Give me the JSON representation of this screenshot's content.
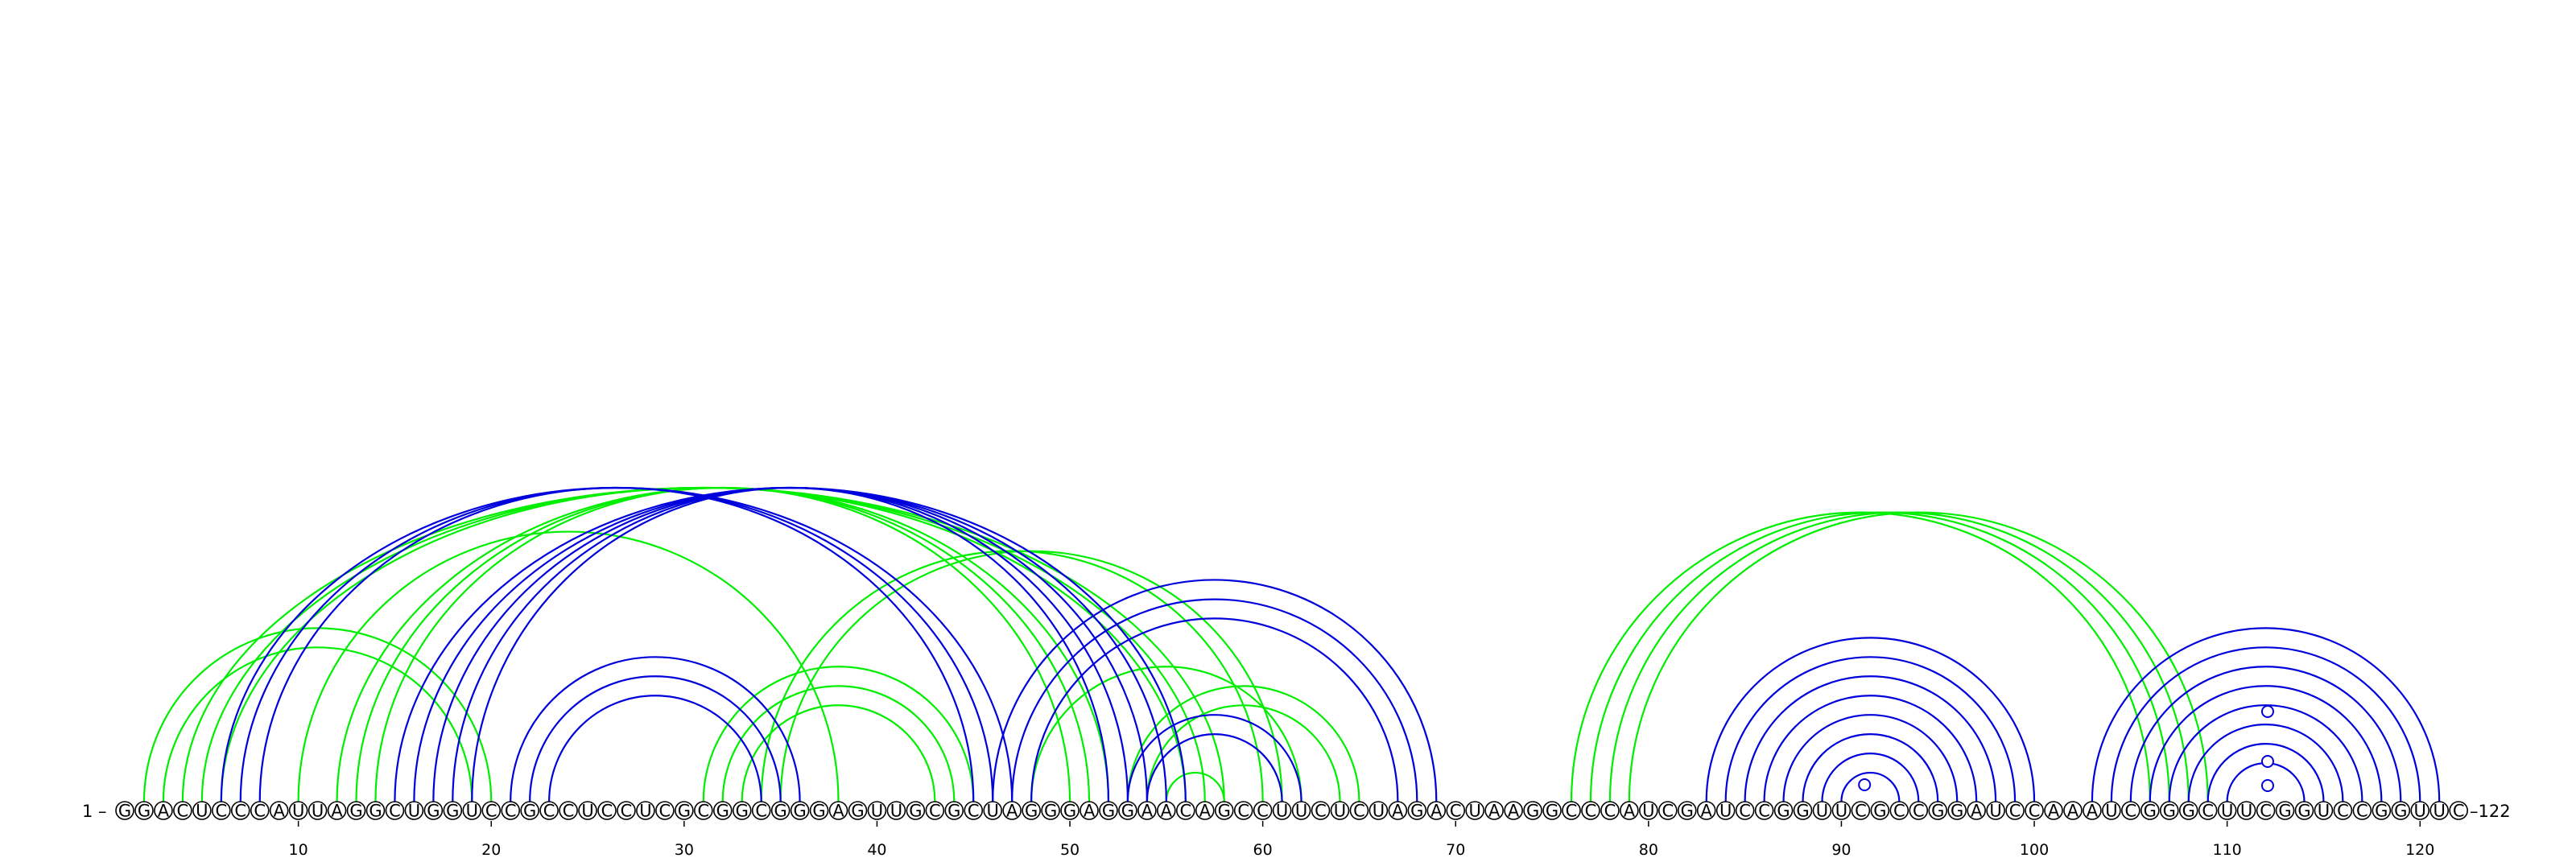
{
  "sequence": "GGACUCCCAUUAGGCUGGUCCGCCUCCUCGCGGCGGGAGUUGCGCUAGGGAGGAACAGCCUUCUCUAGACUAAGGCCCAUCGAUCCGGUUCGCCGGAUCCAAAUCGGGCUUCGGUCCGGUUC",
  "start_label": "1 –",
  "end_label": "–122",
  "ticks": [
    10,
    20,
    30,
    40,
    50,
    60,
    70,
    80,
    90,
    100,
    110,
    120
  ],
  "colors": {
    "blue": "#0000dd",
    "green": "#00ee00",
    "axis": "#000000"
  },
  "arcs_green": [
    [
      2,
      20
    ],
    [
      3,
      19
    ],
    [
      4,
      58
    ],
    [
      5,
      57
    ],
    [
      6,
      56
    ],
    [
      12,
      52
    ],
    [
      13,
      51
    ],
    [
      14,
      50
    ],
    [
      10,
      38
    ],
    [
      31,
      45
    ],
    [
      32,
      44
    ],
    [
      33,
      43
    ],
    [
      34,
      60
    ],
    [
      35,
      61
    ],
    [
      48,
      62
    ],
    [
      53,
      65
    ],
    [
      54,
      64
    ],
    [
      55,
      58
    ],
    [
      76,
      106
    ],
    [
      77,
      107
    ],
    [
      78,
      108
    ],
    [
      79,
      109
    ]
  ],
  "arcs_blue": [
    [
      6,
      47
    ],
    [
      7,
      46
    ],
    [
      8,
      45
    ],
    [
      15,
      56
    ],
    [
      16,
      55
    ],
    [
      17,
      54
    ],
    [
      18,
      53
    ],
    [
      19,
      52
    ],
    [
      21,
      36
    ],
    [
      22,
      35
    ],
    [
      23,
      34
    ],
    [
      46,
      69
    ],
    [
      47,
      68
    ],
    [
      48,
      67
    ],
    [
      53,
      62
    ],
    [
      54,
      61
    ],
    [
      83,
      100
    ],
    [
      84,
      99
    ],
    [
      85,
      98
    ],
    [
      86,
      97
    ],
    [
      87,
      96
    ],
    [
      88,
      95
    ],
    [
      89,
      94
    ],
    [
      90,
      93
    ],
    [
      103,
      121
    ],
    [
      104,
      120
    ],
    [
      105,
      119
    ],
    [
      106,
      118
    ],
    [
      107,
      117
    ],
    [
      108,
      116
    ],
    [
      109,
      115
    ],
    [
      110,
      114
    ]
  ],
  "markers_blue": [
    91,
    112,
    113,
    114
  ]
}
